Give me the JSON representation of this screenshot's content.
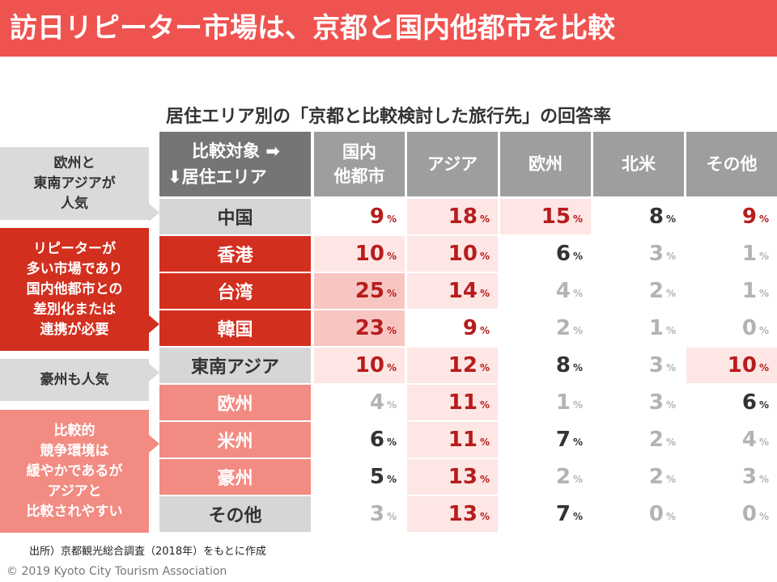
{
  "title": "訪日リピーター市場は、京都と国内他都市を比較",
  "subtitle": "居住エリア別の「京都と比較検討した旅行先」の回答率",
  "header": {
    "line1": "比較対象 ➡",
    "line2": "⬇居住エリア"
  },
  "unit": "%",
  "colors": {
    "title_bg": "#ef5350",
    "header_dark": "#757575",
    "header_light": "#9e9e9e",
    "row_gray": "#d6d6d6",
    "row_red": "#d32f1f",
    "row_pink": "#f28b82",
    "highlight_strong": "#f8c6c2",
    "highlight_light": "#fde6e4",
    "value_red": "#b71c1c",
    "value_dark": "#333333",
    "value_gray": "#b3b3b3"
  },
  "side_notes": [
    {
      "text": "欧州と\n東南アジアが\n人気",
      "style": "gray"
    },
    {
      "text": "リピーターが\n多い市場であり\n国内他都市との\n差別化または\n連携が必要",
      "style": "red"
    },
    {
      "text": "豪州も人気",
      "style": "gray"
    },
    {
      "text": "比較的\n競争環境は\n緩やかであるが\nアジアと\n比較されやすい",
      "style": "pink"
    }
  ],
  "chart_data": {
    "type": "table",
    "columns": [
      "国内\n他都市",
      "アジア",
      "欧州",
      "北米",
      "その他"
    ],
    "rows": [
      {
        "label": "中国",
        "group": "gray",
        "values": [
          9,
          18,
          15,
          8,
          9
        ]
      },
      {
        "label": "香港",
        "group": "red",
        "values": [
          10,
          10,
          6,
          3,
          1
        ]
      },
      {
        "label": "台湾",
        "group": "red",
        "values": [
          25,
          14,
          4,
          2,
          1
        ]
      },
      {
        "label": "韓国",
        "group": "red",
        "values": [
          23,
          9,
          2,
          1,
          0
        ]
      },
      {
        "label": "東南アジア",
        "group": "gray",
        "values": [
          10,
          12,
          8,
          3,
          10
        ]
      },
      {
        "label": "欧州",
        "group": "pink",
        "values": [
          4,
          11,
          1,
          3,
          6
        ]
      },
      {
        "label": "米州",
        "group": "pink",
        "values": [
          6,
          11,
          7,
          2,
          4
        ]
      },
      {
        "label": "豪州",
        "group": "pink",
        "values": [
          5,
          13,
          2,
          2,
          3
        ]
      },
      {
        "label": "その他",
        "group": "gray",
        "values": [
          3,
          13,
          7,
          0,
          0
        ]
      }
    ]
  },
  "source": "出所）京都観光総合調査（2018年）をもとに作成",
  "copyright": "© 2019 Kyoto City Tourism Association"
}
